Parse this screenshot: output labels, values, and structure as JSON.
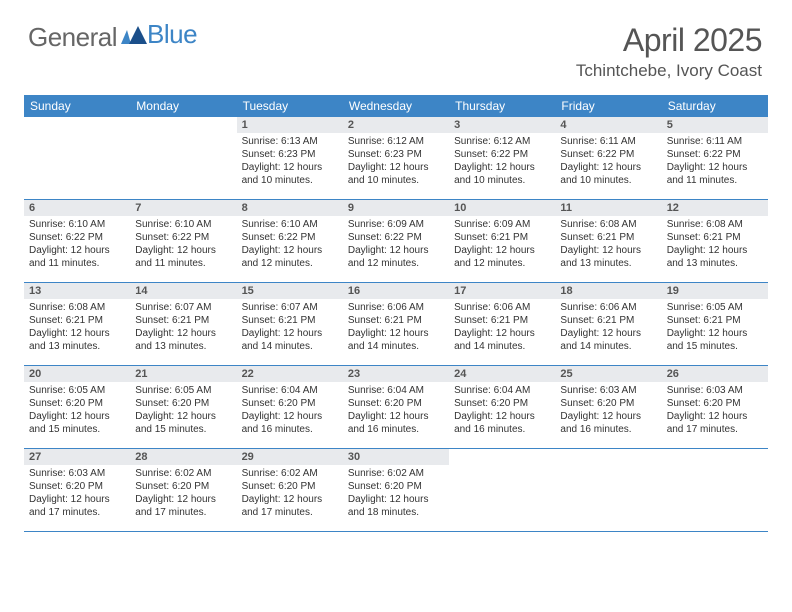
{
  "logo": {
    "part1": "General",
    "part2": "Blue"
  },
  "title": "April 2025",
  "location": "Tchintchebe, Ivory Coast",
  "colors": {
    "header_bg": "#3d85c6",
    "header_text": "#ffffff",
    "daynum_bg": "#e8eaed",
    "border": "#3d85c6",
    "title_color": "#555555",
    "body_text": "#333333"
  },
  "weekdays": [
    "Sunday",
    "Monday",
    "Tuesday",
    "Wednesday",
    "Thursday",
    "Friday",
    "Saturday"
  ],
  "weeks": [
    [
      {
        "day": "",
        "lines": []
      },
      {
        "day": "",
        "lines": []
      },
      {
        "day": "1",
        "lines": [
          "Sunrise: 6:13 AM",
          "Sunset: 6:23 PM",
          "Daylight: 12 hours and 10 minutes."
        ]
      },
      {
        "day": "2",
        "lines": [
          "Sunrise: 6:12 AM",
          "Sunset: 6:23 PM",
          "Daylight: 12 hours and 10 minutes."
        ]
      },
      {
        "day": "3",
        "lines": [
          "Sunrise: 6:12 AM",
          "Sunset: 6:22 PM",
          "Daylight: 12 hours and 10 minutes."
        ]
      },
      {
        "day": "4",
        "lines": [
          "Sunrise: 6:11 AM",
          "Sunset: 6:22 PM",
          "Daylight: 12 hours and 10 minutes."
        ]
      },
      {
        "day": "5",
        "lines": [
          "Sunrise: 6:11 AM",
          "Sunset: 6:22 PM",
          "Daylight: 12 hours and 11 minutes."
        ]
      }
    ],
    [
      {
        "day": "6",
        "lines": [
          "Sunrise: 6:10 AM",
          "Sunset: 6:22 PM",
          "Daylight: 12 hours and 11 minutes."
        ]
      },
      {
        "day": "7",
        "lines": [
          "Sunrise: 6:10 AM",
          "Sunset: 6:22 PM",
          "Daylight: 12 hours and 11 minutes."
        ]
      },
      {
        "day": "8",
        "lines": [
          "Sunrise: 6:10 AM",
          "Sunset: 6:22 PM",
          "Daylight: 12 hours and 12 minutes."
        ]
      },
      {
        "day": "9",
        "lines": [
          "Sunrise: 6:09 AM",
          "Sunset: 6:22 PM",
          "Daylight: 12 hours and 12 minutes."
        ]
      },
      {
        "day": "10",
        "lines": [
          "Sunrise: 6:09 AM",
          "Sunset: 6:21 PM",
          "Daylight: 12 hours and 12 minutes."
        ]
      },
      {
        "day": "11",
        "lines": [
          "Sunrise: 6:08 AM",
          "Sunset: 6:21 PM",
          "Daylight: 12 hours and 13 minutes."
        ]
      },
      {
        "day": "12",
        "lines": [
          "Sunrise: 6:08 AM",
          "Sunset: 6:21 PM",
          "Daylight: 12 hours and 13 minutes."
        ]
      }
    ],
    [
      {
        "day": "13",
        "lines": [
          "Sunrise: 6:08 AM",
          "Sunset: 6:21 PM",
          "Daylight: 12 hours and 13 minutes."
        ]
      },
      {
        "day": "14",
        "lines": [
          "Sunrise: 6:07 AM",
          "Sunset: 6:21 PM",
          "Daylight: 12 hours and 13 minutes."
        ]
      },
      {
        "day": "15",
        "lines": [
          "Sunrise: 6:07 AM",
          "Sunset: 6:21 PM",
          "Daylight: 12 hours and 14 minutes."
        ]
      },
      {
        "day": "16",
        "lines": [
          "Sunrise: 6:06 AM",
          "Sunset: 6:21 PM",
          "Daylight: 12 hours and 14 minutes."
        ]
      },
      {
        "day": "17",
        "lines": [
          "Sunrise: 6:06 AM",
          "Sunset: 6:21 PM",
          "Daylight: 12 hours and 14 minutes."
        ]
      },
      {
        "day": "18",
        "lines": [
          "Sunrise: 6:06 AM",
          "Sunset: 6:21 PM",
          "Daylight: 12 hours and 14 minutes."
        ]
      },
      {
        "day": "19",
        "lines": [
          "Sunrise: 6:05 AM",
          "Sunset: 6:21 PM",
          "Daylight: 12 hours and 15 minutes."
        ]
      }
    ],
    [
      {
        "day": "20",
        "lines": [
          "Sunrise: 6:05 AM",
          "Sunset: 6:20 PM",
          "Daylight: 12 hours and 15 minutes."
        ]
      },
      {
        "day": "21",
        "lines": [
          "Sunrise: 6:05 AM",
          "Sunset: 6:20 PM",
          "Daylight: 12 hours and 15 minutes."
        ]
      },
      {
        "day": "22",
        "lines": [
          "Sunrise: 6:04 AM",
          "Sunset: 6:20 PM",
          "Daylight: 12 hours and 16 minutes."
        ]
      },
      {
        "day": "23",
        "lines": [
          "Sunrise: 6:04 AM",
          "Sunset: 6:20 PM",
          "Daylight: 12 hours and 16 minutes."
        ]
      },
      {
        "day": "24",
        "lines": [
          "Sunrise: 6:04 AM",
          "Sunset: 6:20 PM",
          "Daylight: 12 hours and 16 minutes."
        ]
      },
      {
        "day": "25",
        "lines": [
          "Sunrise: 6:03 AM",
          "Sunset: 6:20 PM",
          "Daylight: 12 hours and 16 minutes."
        ]
      },
      {
        "day": "26",
        "lines": [
          "Sunrise: 6:03 AM",
          "Sunset: 6:20 PM",
          "Daylight: 12 hours and 17 minutes."
        ]
      }
    ],
    [
      {
        "day": "27",
        "lines": [
          "Sunrise: 6:03 AM",
          "Sunset: 6:20 PM",
          "Daylight: 12 hours and 17 minutes."
        ]
      },
      {
        "day": "28",
        "lines": [
          "Sunrise: 6:02 AM",
          "Sunset: 6:20 PM",
          "Daylight: 12 hours and 17 minutes."
        ]
      },
      {
        "day": "29",
        "lines": [
          "Sunrise: 6:02 AM",
          "Sunset: 6:20 PM",
          "Daylight: 12 hours and 17 minutes."
        ]
      },
      {
        "day": "30",
        "lines": [
          "Sunrise: 6:02 AM",
          "Sunset: 6:20 PM",
          "Daylight: 12 hours and 18 minutes."
        ]
      },
      {
        "day": "",
        "lines": []
      },
      {
        "day": "",
        "lines": []
      },
      {
        "day": "",
        "lines": []
      }
    ]
  ]
}
